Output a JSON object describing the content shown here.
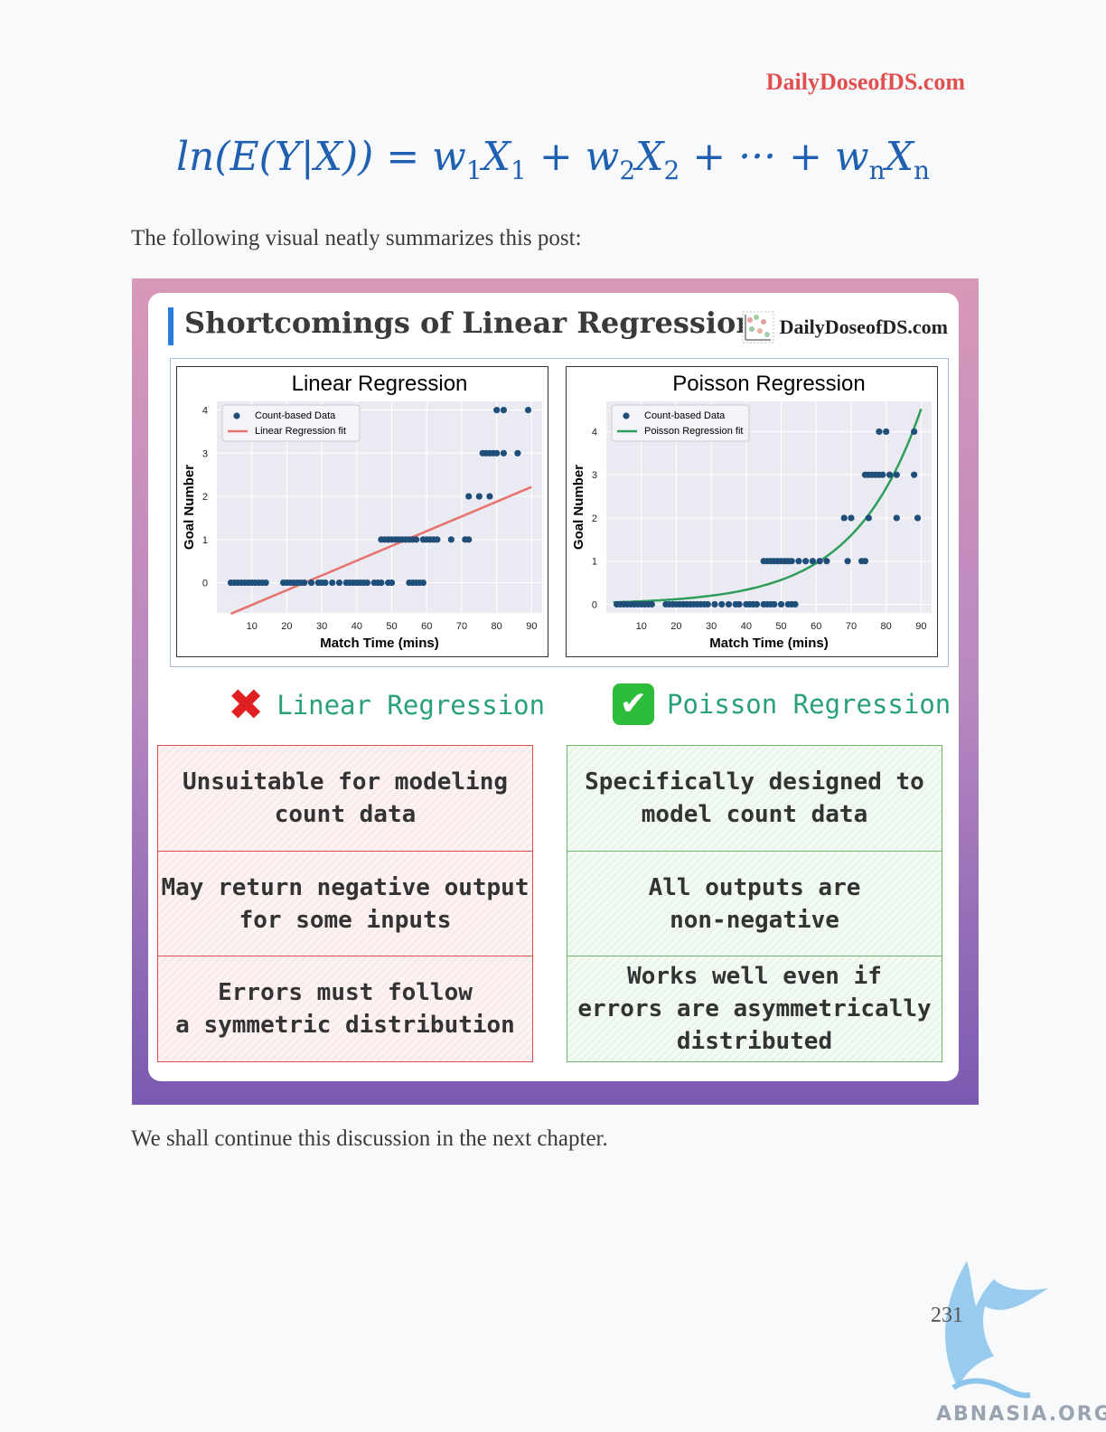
{
  "header": {
    "site": "DailyDoseofDS.com"
  },
  "equation": {
    "lhs": "ln(E(Y|X)) = ",
    "t1": "w",
    "s1": "1",
    "x1": "X",
    "sx1": "1",
    "plus1": " + ",
    "t2": "w",
    "s2": "2",
    "x2": "X",
    "sx2": "2",
    "dots": " + ··· + ",
    "tn": "w",
    "sn": "n",
    "xn": "X",
    "sxn": "n"
  },
  "intro_text": "The following visual neatly summarizes this post:",
  "figure": {
    "title": "Shortcomings of Linear Regression",
    "brand": "DailyDoseofDS.com",
    "left_head": "Linear Regression",
    "right_head": "Poisson Regression",
    "left_points": [
      {
        "text": "Unsuitable for modeling\ncount data"
      },
      {
        "text": "May return negative output\nfor some inputs"
      },
      {
        "text": "Errors must follow\na symmetric distribution"
      }
    ],
    "right_points": [
      {
        "text": "Specifically designed to\nmodel count data"
      },
      {
        "text": "All outputs are\nnon-negative"
      },
      {
        "text": "Works well even if\nerrors are asymmetrically\ndistributed"
      }
    ]
  },
  "chart_data": [
    {
      "type": "scatter",
      "title": "Linear Regression",
      "xlabel": "Match Time (mins)",
      "ylabel": "Goal Number",
      "xlim": [
        0,
        93
      ],
      "ylim": [
        -0.7,
        4.2
      ],
      "xticks": [
        10,
        20,
        30,
        40,
        50,
        60,
        70,
        80,
        90
      ],
      "yticks": [
        0,
        1,
        2,
        3,
        4
      ],
      "legend": "top-left",
      "grid": true,
      "series": [
        {
          "name": "Count-based Data",
          "color": "#1f4e79",
          "x": [
            4,
            5,
            6,
            7,
            8,
            9,
            10,
            11,
            12,
            13,
            14,
            19,
            20,
            21,
            22,
            23,
            24,
            25,
            27,
            29,
            30,
            31,
            33,
            35,
            37,
            38,
            39,
            40,
            41,
            42,
            43,
            45,
            46,
            47,
            49,
            50,
            55,
            56,
            57,
            58,
            59,
            47,
            48,
            49,
            50,
            51,
            52,
            53,
            54,
            55,
            56,
            57,
            59,
            60,
            61,
            62,
            63,
            67,
            71,
            72,
            72,
            75,
            78,
            76,
            77,
            78,
            79,
            80,
            82,
            86,
            80,
            82,
            89
          ],
          "y": [
            0,
            0,
            0,
            0,
            0,
            0,
            0,
            0,
            0,
            0,
            0,
            0,
            0,
            0,
            0,
            0,
            0,
            0,
            0,
            0,
            0,
            0,
            0,
            0,
            0,
            0,
            0,
            0,
            0,
            0,
            0,
            0,
            0,
            0,
            0,
            0,
            0,
            0,
            0,
            0,
            0,
            1,
            1,
            1,
            1,
            1,
            1,
            1,
            1,
            1,
            1,
            1,
            1,
            1,
            1,
            1,
            1,
            1,
            1,
            1,
            2,
            2,
            2,
            3,
            3,
            3,
            3,
            3,
            3,
            3,
            4,
            4,
            4
          ]
        },
        {
          "name": "Linear Regression fit",
          "color": "#e8726c",
          "fit": "linear",
          "x": [
            4,
            90
          ],
          "y": [
            -0.72,
            2.22
          ]
        }
      ]
    },
    {
      "type": "scatter",
      "title": "Poisson Regression",
      "xlabel": "Match Time (mins)",
      "ylabel": "Goal Number",
      "xlim": [
        0,
        93
      ],
      "ylim": [
        -0.2,
        4.7
      ],
      "xticks": [
        10,
        20,
        30,
        40,
        50,
        60,
        70,
        80,
        90
      ],
      "yticks": [
        0,
        1,
        2,
        3,
        4
      ],
      "legend": "top-left",
      "grid": true,
      "series": [
        {
          "name": "Count-based Data",
          "color": "#1f4e79",
          "x": [
            3,
            4,
            5,
            6,
            7,
            8,
            9,
            10,
            11,
            12,
            13,
            17,
            18,
            19,
            20,
            21,
            22,
            23,
            24,
            25,
            26,
            27,
            28,
            29,
            31,
            33,
            35,
            37,
            38,
            40,
            41,
            42,
            43,
            45,
            46,
            47,
            48,
            50,
            52,
            53,
            54,
            45,
            46,
            47,
            48,
            49,
            50,
            51,
            52,
            53,
            55,
            57,
            59,
            61,
            63,
            69,
            73,
            74,
            68,
            70,
            75,
            83,
            89,
            74,
            75,
            76,
            77,
            78,
            79,
            81,
            83,
            88,
            78,
            80,
            88
          ],
          "y": [
            0,
            0,
            0,
            0,
            0,
            0,
            0,
            0,
            0,
            0,
            0,
            0,
            0,
            0,
            0,
            0,
            0,
            0,
            0,
            0,
            0,
            0,
            0,
            0,
            0,
            0,
            0,
            0,
            0,
            0,
            0,
            0,
            0,
            0,
            0,
            0,
            0,
            0,
            0,
            0,
            0,
            1,
            1,
            1,
            1,
            1,
            1,
            1,
            1,
            1,
            1,
            1,
            1,
            1,
            1,
            1,
            1,
            1,
            2,
            2,
            2,
            2,
            2,
            3,
            3,
            3,
            3,
            3,
            3,
            3,
            3,
            3,
            4,
            4,
            4
          ]
        },
        {
          "name": "Poisson Regression fit",
          "color": "#2e9e5a",
          "fit": "poisson",
          "a": 0.042,
          "b": 0.052
        }
      ]
    }
  ],
  "outro_text": "We shall continue this discussion in the next chapter.",
  "footer": {
    "page_number": "231",
    "watermark": "ABNASIA.ORG"
  }
}
